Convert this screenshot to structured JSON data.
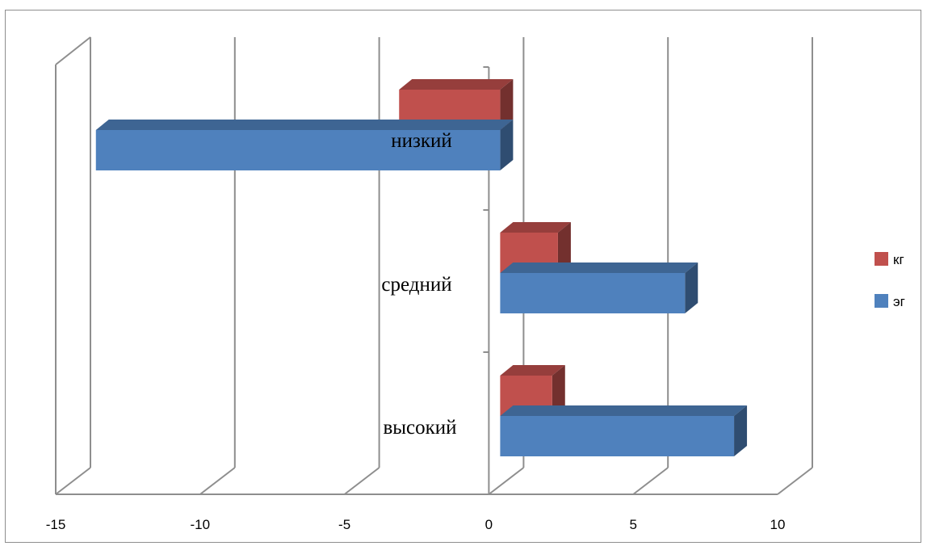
{
  "chart_data": {
    "type": "bar",
    "orientation": "horizontal",
    "three_d": true,
    "categories": [
      "низкий",
      "средний",
      "высокий"
    ],
    "series": [
      {
        "name": "кг",
        "values": [
          -3.5,
          2.0,
          1.8
        ],
        "color": "#c0504d"
      },
      {
        "name": "эг",
        "values": [
          -14.0,
          6.4,
          8.1
        ],
        "color": "#4f81bd"
      }
    ],
    "xlim": [
      -15,
      10
    ],
    "xticks": [
      -15,
      -10,
      -5,
      0,
      5,
      10
    ],
    "grid": "vertical",
    "legend": "right"
  }
}
